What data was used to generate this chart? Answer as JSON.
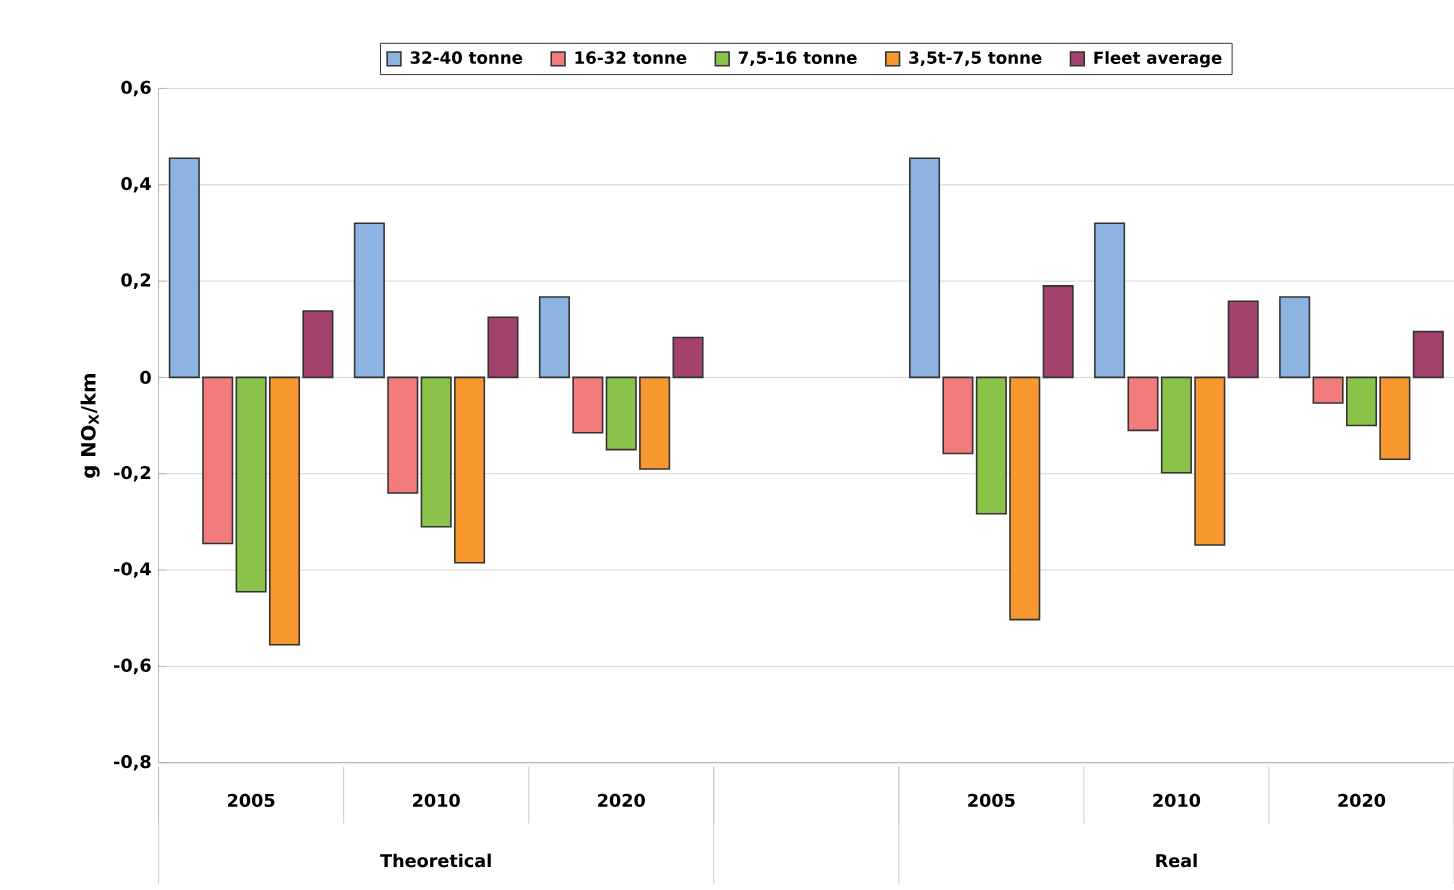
{
  "chart_data": {
    "type": "bar",
    "ylabel": "g NO$_{X}$/km",
    "categories": [
      "2005",
      "2010",
      "2020",
      null,
      "2005",
      "2010",
      "2020"
    ],
    "annotations": [
      "Theoretical",
      "Real"
    ],
    "series": [
      {
        "name": "32-40 tonne",
        "color": "#8db3e2",
        "values": [
          0.455,
          0.32,
          0.167,
          null,
          0.455,
          0.32,
          0.167
        ]
      },
      {
        "name": "16-32 tonne",
        "color": "#f27b7b",
        "values": [
          -0.345,
          -0.24,
          -0.115,
          null,
          -0.158,
          -0.11,
          -0.053
        ]
      },
      {
        "name": "7,5-16 tonne",
        "color": "#8bc34a",
        "values": [
          -0.445,
          -0.31,
          -0.15,
          null,
          -0.283,
          -0.198,
          -0.1
        ]
      },
      {
        "name": "3,5t-7,5 tonne",
        "color": "#f7992f",
        "values": [
          -0.555,
          -0.385,
          -0.19,
          null,
          -0.503,
          -0.348,
          -0.17
        ]
      },
      {
        "name": "Fleet average",
        "color": "#a3416f",
        "values": [
          0.138,
          0.125,
          0.083,
          null,
          0.19,
          0.158,
          0.095
        ]
      }
    ],
    "ylim": [
      -0.8,
      0.6
    ],
    "yticks": [
      {
        "value": -0.8,
        "label": "-0,8"
      },
      {
        "value": -0.6,
        "label": "-0,6"
      },
      {
        "value": -0.4,
        "label": "-0,4"
      },
      {
        "value": -0.2,
        "label": "-0,2"
      },
      0,
      {
        "value": 0.2,
        "label": "0,2"
      },
      {
        "value": 0.4,
        "label": "0,4"
      },
      {
        "value": 0.6,
        "label": "0,6"
      }
    ],
    "grid": "y",
    "legend": "top"
  }
}
